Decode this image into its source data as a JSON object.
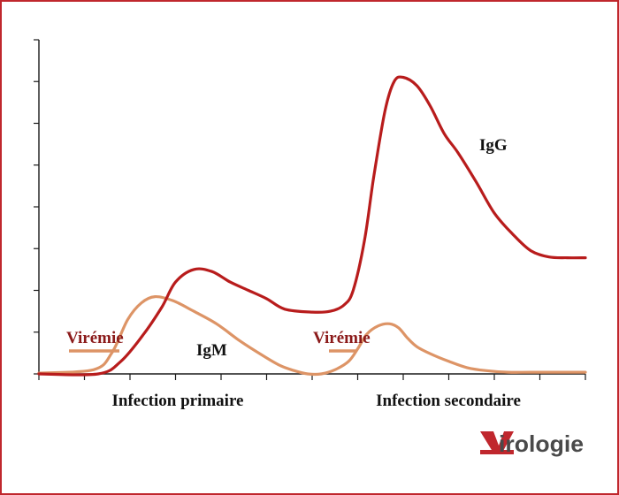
{
  "chart_data": {
    "type": "line",
    "title": "",
    "xlabel": "",
    "ylabel": "",
    "xlim": [
      0,
      12
    ],
    "ylim": [
      0,
      8
    ],
    "x_ticks": [
      0,
      1,
      2,
      3,
      4,
      5,
      6,
      7,
      8,
      9,
      10,
      11,
      12
    ],
    "y_ticks": [
      0,
      1,
      2,
      3,
      4,
      5,
      6,
      7,
      8
    ],
    "grid": false,
    "phase_labels": [
      "Infection primaire",
      "Infection secondaire"
    ],
    "series": [
      {
        "name": "IgG",
        "color": "#b81c1c",
        "x": [
          0,
          1.3,
          1.8,
          2.3,
          2.7,
          3.0,
          3.4,
          3.8,
          4.2,
          4.6,
          5.0,
          5.4,
          6.0,
          6.4,
          6.7,
          6.9,
          7.15,
          7.35,
          7.6,
          7.8,
          8.0,
          8.3,
          8.6,
          8.9,
          9.2,
          9.6,
          10.0,
          10.4,
          10.8,
          11.2,
          11.6,
          12.0
        ],
        "values": [
          0,
          0,
          0.3,
          0.95,
          1.6,
          2.2,
          2.5,
          2.45,
          2.2,
          2.0,
          1.8,
          1.55,
          1.48,
          1.5,
          1.65,
          2.0,
          3.2,
          4.7,
          6.3,
          7.0,
          7.1,
          6.9,
          6.4,
          5.75,
          5.3,
          4.6,
          3.85,
          3.35,
          2.95,
          2.8,
          2.78,
          2.78
        ]
      },
      {
        "name": "IgM",
        "color": "#dd9466",
        "x": [
          0,
          1.2,
          1.6,
          1.95,
          2.25,
          2.55,
          2.95,
          3.4,
          3.9,
          4.4,
          4.9,
          5.3,
          5.6,
          5.9,
          6.2,
          6.5,
          6.8,
          7.0,
          7.2,
          7.45,
          7.7,
          7.9,
          8.1,
          8.3,
          8.6,
          9.0,
          9.4,
          9.8,
          10.3,
          10.8,
          11.5,
          12.0
        ],
        "values": [
          0.02,
          0.1,
          0.5,
          1.3,
          1.7,
          1.85,
          1.75,
          1.5,
          1.2,
          0.8,
          0.45,
          0.2,
          0.08,
          0.0,
          0.0,
          0.1,
          0.3,
          0.6,
          0.95,
          1.15,
          1.2,
          1.1,
          0.85,
          0.65,
          0.48,
          0.3,
          0.15,
          0.08,
          0.04,
          0.04,
          0.04,
          0.04
        ]
      }
    ],
    "annotations": [
      {
        "text": "Virémie",
        "x": 1.05,
        "y": 0.85
      },
      {
        "text": "IgM",
        "x": 3.8,
        "y": 0.6
      },
      {
        "text": "Virémie",
        "x": 6.7,
        "y": 0.85
      },
      {
        "text": "IgG",
        "x": 9.9,
        "y": 5.55
      }
    ]
  },
  "logo": {
    "text": "Virologie",
    "colors": {
      "v": "#c0272d",
      "rest": "#4a4a4a"
    }
  },
  "colors": {
    "frame": "#c0272d",
    "axis": "#1a1a1a"
  }
}
